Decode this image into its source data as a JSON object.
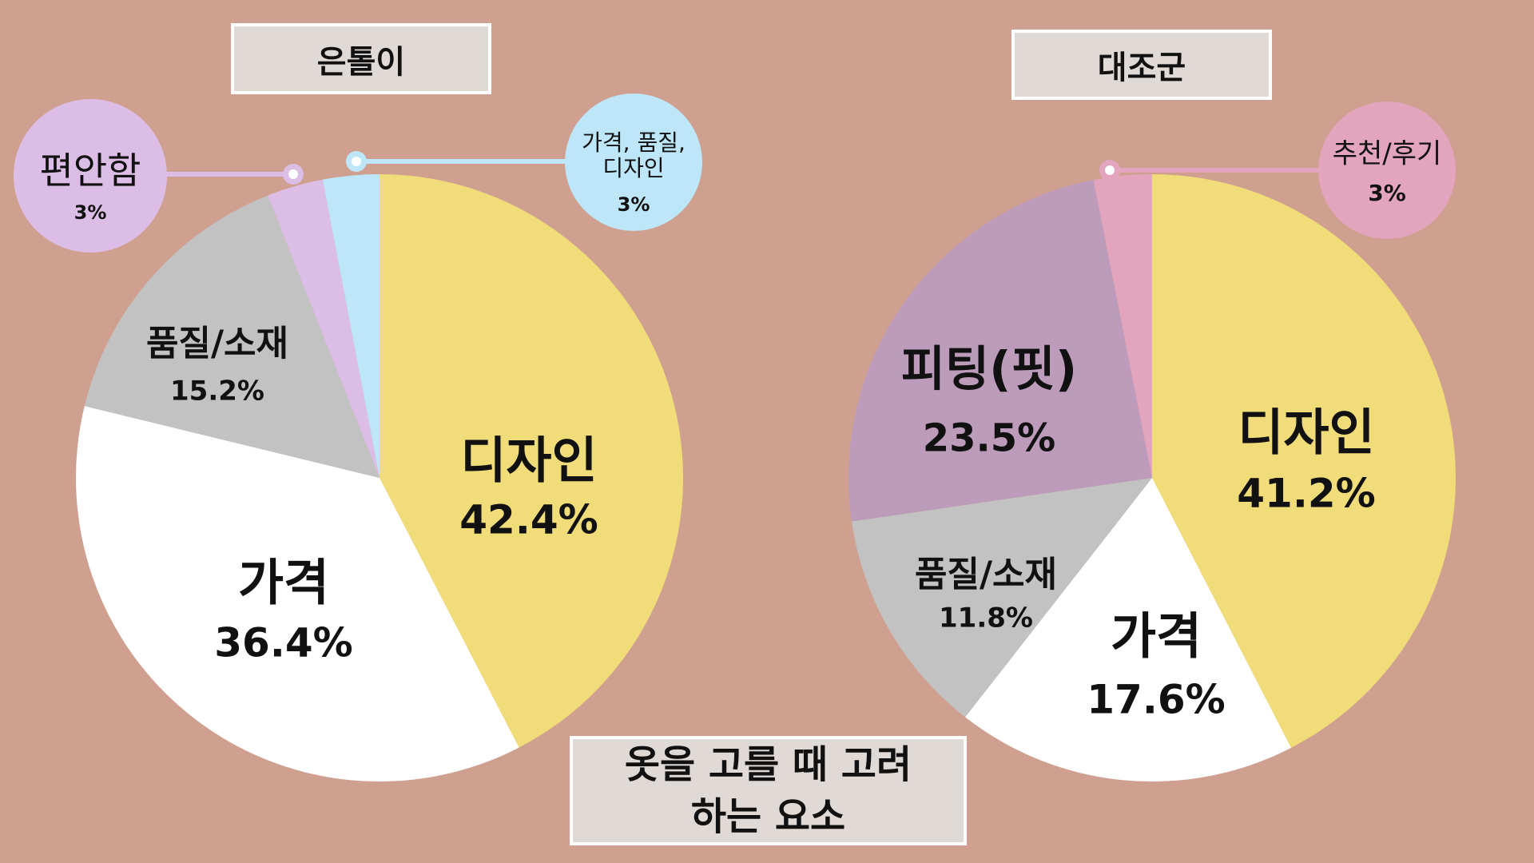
{
  "caption": "옷을 고를 때 고려하는 요소",
  "chart_data": [
    {
      "type": "pie",
      "title": "은톨이",
      "categories": [
        "디자인",
        "가격",
        "품질/소재",
        "편안함",
        "가격, 품질, 디자인"
      ],
      "values": [
        42.4,
        36.4,
        15.2,
        3,
        3
      ],
      "value_labels": [
        "42.4%",
        "36.4%",
        "15.2%",
        "3%",
        "3%"
      ],
      "colors": [
        "#f0dc78",
        "#ffffff",
        "#c2c2c2",
        "#dcbde6",
        "#bde6f8"
      ]
    },
    {
      "type": "pie",
      "title": "대조군",
      "categories": [
        "디자인",
        "가격",
        "품질/소재",
        "피팅(핏)",
        "추천/후기"
      ],
      "values": [
        41.2,
        17.6,
        11.8,
        23.5,
        3
      ],
      "value_labels": [
        "41.2%",
        "17.6%",
        "11.8%",
        "23.5%",
        "3%"
      ],
      "colors": [
        "#f0dc78",
        "#ffffff",
        "#c2c2c2",
        "#bc9bbb",
        "#e2a5bd"
      ]
    }
  ]
}
